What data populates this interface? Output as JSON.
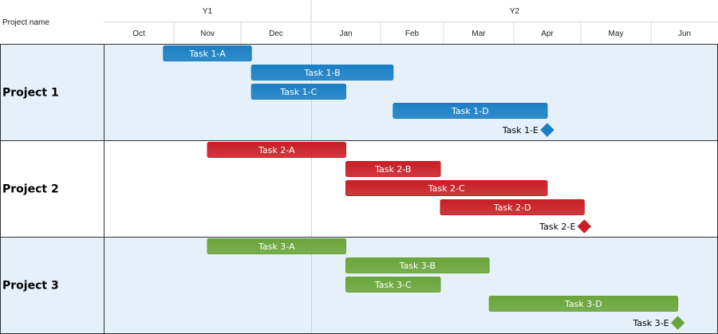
{
  "header": {
    "project_name_label": "Project name"
  },
  "chart_data": {
    "type": "gantt",
    "years": [
      {
        "label": "Y1",
        "months": [
          "Oct",
          "Nov",
          "Dec"
        ]
      },
      {
        "label": "Y2",
        "months": [
          "Jan",
          "Feb",
          "Mar",
          "Apr",
          "May",
          "Jun"
        ]
      }
    ],
    "months": [
      "Oct",
      "Nov",
      "Dec",
      "Jan",
      "Feb",
      "Mar",
      "Apr",
      "May",
      "Jun"
    ],
    "projects": [
      {
        "name": "Project 1",
        "color": "#1a7fc4",
        "band": "#e6f0f8",
        "tasks": [
          {
            "name": "Task 1-A",
            "start": 0.85,
            "end": 2.15
          },
          {
            "name": "Task 1-B",
            "start": 2.15,
            "end": 4.2
          },
          {
            "name": "Task 1-C",
            "start": 2.15,
            "end": 3.5
          },
          {
            "name": "Task 1-D",
            "start": 4.2,
            "end": 6.5
          }
        ],
        "milestone": {
          "name": "Task 1-E",
          "at": 6.5
        }
      },
      {
        "name": "Project 2",
        "color": "#c81e24",
        "band": "#ffffff",
        "tasks": [
          {
            "name": "Task 2-A",
            "start": 1.5,
            "end": 3.5
          },
          {
            "name": "Task 2-B",
            "start": 3.5,
            "end": 4.95
          },
          {
            "name": "Task 2-C",
            "start": 3.5,
            "end": 6.5
          },
          {
            "name": "Task 2-D",
            "start": 4.95,
            "end": 7.05
          }
        ],
        "milestone": {
          "name": "Task 2-E",
          "at": 7.05
        }
      },
      {
        "name": "Project 3",
        "color": "#6aa53a",
        "band": "#e6f0f8",
        "tasks": [
          {
            "name": "Task 3-A",
            "start": 1.5,
            "end": 3.5
          },
          {
            "name": "Task 3-B",
            "start": 3.5,
            "end": 5.65
          },
          {
            "name": "Task 3-C",
            "start": 3.5,
            "end": 4.95
          },
          {
            "name": "Task 3-D",
            "start": 5.65,
            "end": 8.4
          }
        ],
        "milestone": {
          "name": "Task 3-E",
          "at": 8.4
        }
      }
    ]
  }
}
